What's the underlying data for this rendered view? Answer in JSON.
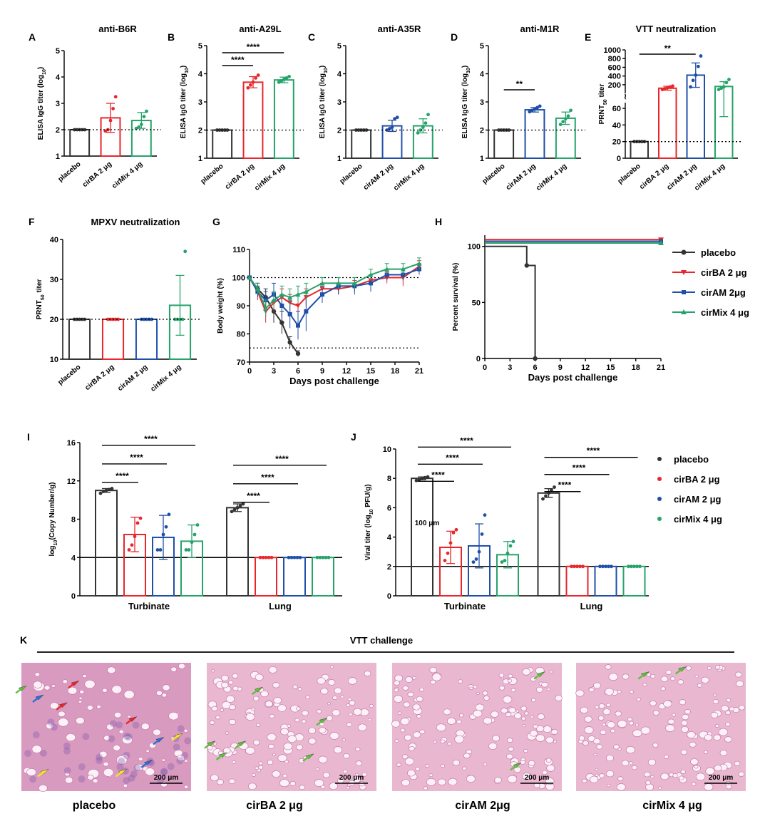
{
  "colors": {
    "placebo": "#333333",
    "cirBA": "#e8262b",
    "cirAM": "#1f4fa8",
    "cirMix": "#26a36a",
    "histo": "#e9b7cf",
    "tissue": "#c46fa6",
    "arrow_red": "#e8262b",
    "arrow_blue": "#2f6fd8",
    "arrow_yellow": "#f2e52a",
    "arrow_green": "#5fbf3c"
  },
  "chart_data": [
    {
      "id": "A",
      "type": "bar",
      "title": "anti-B6R",
      "ylabel": "ELISA IgG titer (log10)",
      "ylim": [
        1,
        5
      ],
      "yticks": [
        1,
        2,
        3,
        4,
        5
      ],
      "refline": 2,
      "categories": [
        "placebo",
        "cirBA 2 μg",
        "cirMix 4 μg"
      ],
      "values": [
        2.0,
        2.45,
        2.35
      ],
      "err": [
        0,
        0.55,
        0.3
      ],
      "points": [
        [
          2,
          2,
          2,
          2,
          2
        ],
        [
          1.95,
          2.0,
          2.35,
          2.8,
          3.25
        ],
        [
          2.05,
          2.1,
          2.2,
          2.5,
          2.7
        ]
      ],
      "series_colors": [
        "placebo",
        "cirBA",
        "cirMix"
      ],
      "sig": []
    },
    {
      "id": "B",
      "type": "bar",
      "title": "anti-A29L",
      "ylabel": "ELISA IgG titer (log10)",
      "ylim": [
        1,
        5
      ],
      "yticks": [
        1,
        2,
        3,
        4,
        5
      ],
      "refline": 2,
      "categories": [
        "placebo",
        "cirBA 2 μg",
        "cirMix 4 μg"
      ],
      "values": [
        2.0,
        3.7,
        3.78
      ],
      "err": [
        0,
        0.2,
        0.1
      ],
      "points": [
        [
          2,
          2,
          2,
          2,
          2
        ],
        [
          3.5,
          3.6,
          3.7,
          3.85,
          3.95
        ],
        [
          3.7,
          3.75,
          3.8,
          3.85,
          3.9
        ]
      ],
      "series_colors": [
        "placebo",
        "cirBA",
        "cirMix"
      ],
      "sig": [
        {
          "a": 0,
          "b": 1,
          "label": "****"
        },
        {
          "a": 0,
          "b": 2,
          "label": "****"
        }
      ]
    },
    {
      "id": "C",
      "type": "bar",
      "title": "anti-A35R",
      "ylabel": "ELISA IgG titer (log10)",
      "ylim": [
        1,
        5
      ],
      "yticks": [
        1,
        2,
        3,
        4,
        5
      ],
      "refline": 2,
      "categories": [
        "placebo",
        "cirAM 2 μg",
        "cirMix 4 μg"
      ],
      "values": [
        2.0,
        2.15,
        2.15
      ],
      "err": [
        0,
        0.2,
        0.25
      ],
      "points": [
        [
          2,
          2,
          2,
          2,
          2
        ],
        [
          2.0,
          2.05,
          2.1,
          2.4,
          2.45
        ],
        [
          1.9,
          2.0,
          2.1,
          2.25,
          2.55
        ]
      ],
      "series_colors": [
        "placebo",
        "cirAM",
        "cirMix"
      ],
      "sig": []
    },
    {
      "id": "D",
      "type": "bar",
      "title": "anti-M1R",
      "ylabel": "ELISA IgG titer (log10)",
      "ylim": [
        1,
        5
      ],
      "yticks": [
        1,
        2,
        3,
        4,
        5
      ],
      "refline": 2,
      "categories": [
        "placebo",
        "cirAM 2 μg",
        "cirMix 4 μg"
      ],
      "values": [
        2.0,
        2.72,
        2.42
      ],
      "err": [
        0,
        0.08,
        0.22
      ],
      "points": [
        [
          2,
          2,
          2,
          2,
          2
        ],
        [
          2.65,
          2.7,
          2.75,
          2.8,
          2.85
        ],
        [
          2.2,
          2.3,
          2.4,
          2.5,
          2.7
        ]
      ],
      "series_colors": [
        "placebo",
        "cirAM",
        "cirMix"
      ],
      "sig": [
        {
          "a": 0,
          "b": 1,
          "label": "**"
        }
      ]
    },
    {
      "id": "E",
      "type": "bar",
      "title": "VTT  neutralization",
      "ylabel": "PRNT50 titer",
      "refline": 20,
      "broken_axis": {
        "lower": [
          0,
          60
        ],
        "upper": [
          100,
          1000
        ]
      },
      "yticks_lower": [
        0,
        20,
        40,
        60
      ],
      "yticks_upper": [
        200,
        400,
        600,
        800,
        1000
      ],
      "categories": [
        "placebo",
        "cirBA 2 μg",
        "cirAM 2 μg",
        "cirMix 4 μg"
      ],
      "values": [
        20,
        120,
        420,
        160
      ],
      "err": [
        0,
        45,
        280,
        110
      ],
      "points": [
        [
          20,
          20,
          20,
          20,
          20
        ],
        [
          90,
          110,
          130,
          150,
          170
        ],
        [
          150,
          300,
          420,
          620,
          860
        ],
        [
          90,
          120,
          150,
          250,
          320
        ]
      ],
      "series_colors": [
        "placebo",
        "cirBA",
        "cirAM",
        "cirMix"
      ],
      "sig": [
        {
          "a": 0,
          "b": 2,
          "label": "**"
        }
      ]
    },
    {
      "id": "F",
      "type": "bar",
      "title": "MPXV neutralization",
      "ylabel": "PRNT50 titer",
      "ylim": [
        10,
        40
      ],
      "yticks": [
        10,
        20,
        30,
        40
      ],
      "refline": 20,
      "categories": [
        "placebo",
        "cirBA 2 μg",
        "cirAM 2 μg",
        "cirMix 4 μg"
      ],
      "values": [
        20,
        20,
        20,
        23.5
      ],
      "err": [
        0,
        0,
        0,
        7.5
      ],
      "points": [
        [
          20,
          20,
          20,
          20,
          20
        ],
        [
          20,
          20,
          20,
          20,
          20
        ],
        [
          20,
          20,
          20,
          20,
          20
        ],
        [
          20,
          20,
          20,
          20,
          37
        ]
      ],
      "series_colors": [
        "placebo",
        "cirBA",
        "cirAM",
        "cirMix"
      ],
      "sig": []
    },
    {
      "id": "G",
      "type": "line",
      "ylabel": "Body weight (%)",
      "xlabel": "Days post challenge",
      "xlim": [
        0,
        21
      ],
      "ylim": [
        70,
        110
      ],
      "xticks": [
        0,
        3,
        6,
        9,
        12,
        15,
        18,
        21
      ],
      "yticks": [
        70,
        80,
        90,
        100,
        110
      ],
      "reflines": [
        100,
        75
      ],
      "series": [
        {
          "name": "placebo",
          "color": "placebo",
          "x": [
            0,
            1,
            2,
            3,
            4,
            5,
            6
          ],
          "y": [
            100,
            96,
            93,
            88,
            84,
            77,
            73
          ],
          "err": [
            0,
            2,
            3,
            4,
            4,
            2,
            1
          ]
        },
        {
          "name": "cirBA 2 μg",
          "color": "cirBA",
          "x": [
            0,
            1,
            2,
            3,
            4,
            5,
            6,
            7,
            9,
            11,
            13,
            15,
            17,
            19,
            21
          ],
          "y": [
            100,
            95,
            88,
            91,
            93,
            91,
            90,
            93,
            96,
            96,
            97,
            99,
            100,
            100,
            104
          ],
          "err": [
            0,
            3,
            4,
            3,
            3,
            3,
            4,
            3,
            2,
            2,
            2,
            2,
            2,
            3,
            2
          ]
        },
        {
          "name": "cirAM 2μg",
          "color": "cirAM",
          "x": [
            0,
            1,
            2,
            3,
            4,
            5,
            6,
            7,
            9,
            11,
            13,
            15,
            17,
            19,
            21
          ],
          "y": [
            100,
            95,
            92,
            94,
            90,
            87,
            83,
            88,
            94,
            97,
            97,
            98,
            101,
            101,
            103
          ],
          "err": [
            0,
            2,
            3,
            4,
            4,
            5,
            5,
            7,
            3,
            3,
            3,
            3,
            2,
            2,
            2
          ]
        },
        {
          "name": "cirMix 4 μg",
          "color": "cirMix",
          "x": [
            0,
            1,
            2,
            3,
            4,
            5,
            6,
            7,
            9,
            11,
            13,
            15,
            17,
            19,
            21
          ],
          "y": [
            100,
            96,
            89,
            92,
            94,
            93,
            94,
            95,
            98,
            98,
            98,
            101,
            103,
            103,
            105
          ],
          "err": [
            0,
            2,
            3,
            3,
            3,
            3,
            3,
            3,
            2,
            2,
            2,
            2,
            2,
            2,
            2
          ]
        }
      ]
    },
    {
      "id": "H",
      "type": "line",
      "ylabel": "Percent survival (%)",
      "xlabel": "Days post challenge",
      "xlim": [
        0,
        21
      ],
      "ylim": [
        0,
        110
      ],
      "xticks": [
        0,
        3,
        6,
        9,
        12,
        15,
        18,
        21
      ],
      "yticks": [
        0,
        50,
        100
      ],
      "series": [
        {
          "name": "placebo",
          "color": "placebo",
          "step": true,
          "x": [
            0,
            5,
            5,
            6,
            6
          ],
          "y": [
            100,
            100,
            83,
            83,
            0
          ],
          "marks": [
            [
              5,
              83
            ],
            [
              6,
              0
            ]
          ]
        },
        {
          "name": "cirBA 2 μg",
          "color": "cirBA",
          "x": [
            0,
            21
          ],
          "y": [
            106,
            106
          ],
          "marks": [
            [
              21,
              106
            ]
          ]
        },
        {
          "name": "cirAM 2μg",
          "color": "cirAM",
          "x": [
            0,
            21
          ],
          "y": [
            104.5,
            104.5
          ],
          "marks": [
            [
              21,
              104.5
            ]
          ]
        },
        {
          "name": "cirMix 4 μg",
          "color": "cirMix",
          "x": [
            0,
            21
          ],
          "y": [
            103,
            103
          ],
          "marks": [
            [
              21,
              103
            ]
          ]
        }
      ],
      "legend": [
        "placebo",
        "cirBA 2 μg",
        "cirAM 2μg",
        "cirMix 4 μg"
      ]
    },
    {
      "id": "I",
      "type": "bar",
      "ylabel": "log10(Copy Number/g)",
      "ylim": [
        0,
        16
      ],
      "yticks": [
        0,
        4,
        8,
        12,
        16
      ],
      "baseline": 4,
      "groups": [
        "Turbinate",
        "Lung"
      ],
      "values": [
        [
          11.0,
          6.4,
          6.1,
          5.7
        ],
        [
          9.2,
          4.0,
          4.0,
          4.0
        ]
      ],
      "err": [
        [
          0.2,
          1.8,
          2.3,
          1.7
        ],
        [
          0.4,
          0,
          0,
          0
        ]
      ],
      "points": [
        [
          [
            10.7,
            10.9,
            11.0,
            11.1,
            11.2
          ],
          [
            4.8,
            5.3,
            6.2,
            7.6,
            8.1
          ],
          [
            4.8,
            4.8,
            6.4,
            7.2,
            8.5
          ],
          [
            4.8,
            4.8,
            5.6,
            6.4,
            7.4
          ]
        ],
        [
          [
            8.8,
            9.0,
            9.2,
            9.4,
            9.6
          ],
          [
            4,
            4,
            4,
            4,
            4
          ],
          [
            4,
            4,
            4,
            4,
            4
          ],
          [
            4,
            4,
            4,
            4,
            4
          ]
        ]
      ],
      "series": [
        "placebo",
        "cirBA 2 μg",
        "cirAM 2 μg",
        "cirMix 4 μg"
      ],
      "series_colors": [
        "placebo",
        "cirBA",
        "cirAM",
        "cirMix"
      ],
      "sig": [
        {
          "g": 0,
          "a": 0,
          "b": 1,
          "label": "****"
        },
        {
          "g": 0,
          "a": 0,
          "b": 2,
          "label": "****"
        },
        {
          "g": 0,
          "a": 0,
          "b": 3,
          "label": "****"
        },
        {
          "g": 1,
          "a": 0,
          "b": 1,
          "label": "****"
        },
        {
          "g": 1,
          "a": 0,
          "b": 2,
          "label": "****"
        },
        {
          "g": 1,
          "a": 0,
          "b": 3,
          "label": "****"
        }
      ]
    },
    {
      "id": "J",
      "type": "bar",
      "ylabel": "Viral titer (log10 PFU/g)",
      "ylim": [
        0,
        10
      ],
      "yticks": [
        0,
        2,
        4,
        6,
        8,
        10
      ],
      "baseline": 2,
      "groups": [
        "Turbinate",
        "Lung"
      ],
      "values": [
        [
          8.0,
          3.3,
          3.4,
          2.8
        ],
        [
          7.0,
          2.0,
          2.0,
          2.0
        ]
      ],
      "err": [
        [
          0.1,
          1.1,
          1.5,
          0.9
        ],
        [
          0.3,
          0,
          0,
          0
        ]
      ],
      "points": [
        [
          [
            7.85,
            7.9,
            8.0,
            8.05,
            8.1
          ],
          [
            2.4,
            2.9,
            3.6,
            4.3,
            4.5
          ],
          [
            2.3,
            2.5,
            3.0,
            4.2,
            5.5
          ],
          [
            2.3,
            2.4,
            2.9,
            3.4,
            3.7
          ]
        ],
        [
          [
            6.6,
            6.8,
            7.0,
            7.2,
            7.4
          ],
          [
            2,
            2,
            2,
            2,
            2
          ],
          [
            2,
            2,
            2,
            2,
            2
          ],
          [
            2,
            2,
            2,
            2,
            2
          ]
        ]
      ],
      "series": [
        "placebo",
        "cirBA 2 μg",
        "cirAM 2 μg",
        "cirMix 4 μg"
      ],
      "series_colors": [
        "placebo",
        "cirBA",
        "cirAM",
        "cirMix"
      ],
      "sig": [
        {
          "g": 0,
          "a": 0,
          "b": 1,
          "label": "****"
        },
        {
          "g": 0,
          "a": 0,
          "b": 2,
          "label": "****"
        },
        {
          "g": 0,
          "a": 0,
          "b": 3,
          "label": "****"
        },
        {
          "g": 1,
          "a": 0,
          "b": 1,
          "label": "****"
        },
        {
          "g": 1,
          "a": 0,
          "b": 2,
          "label": "****"
        },
        {
          "g": 1,
          "a": 0,
          "b": 3,
          "label": "****"
        }
      ],
      "stray_text": "100 μm"
    }
  ],
  "panel_K": {
    "label": "K",
    "title": "VTT challenge",
    "images": [
      {
        "caption": "placebo",
        "scale": "200 μm",
        "arrows": [
          [
            "arrow_red",
            0.34,
            0.14
          ],
          [
            "arrow_blue",
            0.13,
            0.25
          ],
          [
            "arrow_green",
            0.03,
            0.18
          ],
          [
            "arrow_red",
            0.27,
            0.31
          ],
          [
            "arrow_red",
            0.68,
            0.42
          ],
          [
            "arrow_blue",
            0.84,
            0.58
          ],
          [
            "arrow_yellow",
            0.95,
            0.55
          ],
          [
            "arrow_yellow",
            0.16,
            0.83
          ],
          [
            "arrow_yellow",
            0.62,
            0.83
          ],
          [
            "arrow_blue",
            0.77,
            0.76
          ]
        ]
      },
      {
        "caption": "cirBA 2 μg",
        "scale": "200 μm",
        "arrows": [
          [
            "arrow_green",
            0.33,
            0.19
          ],
          [
            "arrow_green",
            0.71,
            0.43
          ],
          [
            "arrow_green",
            0.23,
            0.61
          ],
          [
            "arrow_green",
            0.05,
            0.61
          ],
          [
            "arrow_green",
            0.12,
            0.7
          ],
          [
            "arrow_green",
            0.63,
            0.71
          ]
        ]
      },
      {
        "caption": "cirAM 2μg",
        "scale": "200 μm",
        "arrows": [
          [
            "arrow_green",
            0.9,
            0.07
          ],
          [
            "arrow_green",
            0.76,
            0.78
          ]
        ]
      },
      {
        "caption": "cirMix 4 μg",
        "scale": "200 μm",
        "arrows": [
          [
            "arrow_green",
            0.43,
            0.07
          ],
          [
            "arrow_green",
            0.65,
            0.03
          ]
        ]
      }
    ]
  }
}
